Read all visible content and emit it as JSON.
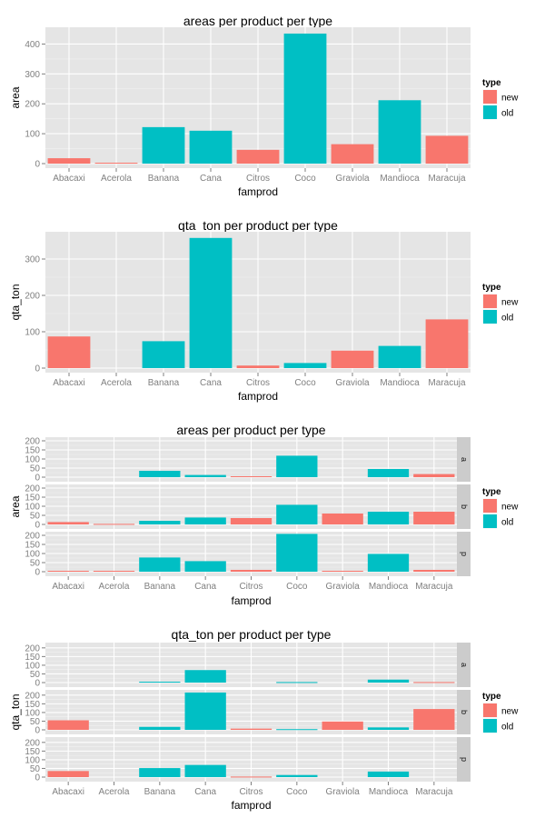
{
  "colors": {
    "new": "#F8766D",
    "old": "#00BFC4",
    "panel_bg": "#E5E5E5",
    "grid": "#FFFFFF",
    "strip_bg": "#CCCCCC",
    "tick_text": "#7F7F7F"
  },
  "legend": {
    "title": "type",
    "labels": [
      "new",
      "old"
    ]
  },
  "chart_data": [
    {
      "type": "bar",
      "title": "areas per product per type",
      "xlabel": "famprod",
      "ylabel": "area",
      "categories": [
        "Abacaxi",
        "Acerola",
        "Banana",
        "Cana",
        "Citros",
        "Coco",
        "Graviola",
        "Mandioca",
        "Maracuja"
      ],
      "fill": [
        "new",
        "new",
        "old",
        "old",
        "new",
        "old",
        "new",
        "old",
        "new"
      ],
      "values": [
        18,
        3,
        122,
        110,
        46,
        435,
        65,
        212,
        93
      ],
      "ylim": [
        0,
        450
      ],
      "yticks": [
        0,
        100,
        200,
        300,
        400
      ],
      "legend_position": "right",
      "grid": true
    },
    {
      "type": "bar",
      "title": "qta_ton per product per type",
      "xlabel": "famprod",
      "ylabel": "qta_ton",
      "categories": [
        "Abacaxi",
        "Acerola",
        "Banana",
        "Cana",
        "Citros",
        "Coco",
        "Graviola",
        "Mandioca",
        "Maracuja"
      ],
      "fill": [
        "new",
        "new",
        "old",
        "old",
        "new",
        "old",
        "new",
        "old",
        "new"
      ],
      "values": [
        87,
        0,
        74,
        358,
        7,
        14,
        48,
        61,
        134
      ],
      "ylim": [
        0,
        370
      ],
      "yticks": [
        0,
        100,
        200,
        300
      ],
      "legend_position": "right",
      "grid": true
    },
    {
      "type": "bar",
      "title": "areas per product per type",
      "xlabel": "famprod",
      "ylabel": "area",
      "categories": [
        "Abacaxi",
        "Acerola",
        "Banana",
        "Cana",
        "Citros",
        "Coco",
        "Graviola",
        "Mandioca",
        "Maracuja"
      ],
      "fill": [
        "new",
        "new",
        "old",
        "old",
        "new",
        "old",
        "new",
        "old",
        "new"
      ],
      "ylim": [
        0,
        210
      ],
      "yticks": [
        0,
        50,
        100,
        150,
        200
      ],
      "legend_position": "right",
      "grid": true,
      "facets": [
        {
          "label": "a",
          "values": [
            0,
            0,
            35,
            12,
            5,
            118,
            0,
            45,
            17
          ]
        },
        {
          "label": "b",
          "values": [
            13,
            3,
            20,
            38,
            35,
            108,
            60,
            70,
            70
          ]
        },
        {
          "label": "p",
          "values": [
            5,
            5,
            78,
            58,
            10,
            208,
            5,
            98,
            10
          ]
        }
      ]
    },
    {
      "type": "bar",
      "title": "qta_ton per product per type",
      "xlabel": "famprod",
      "ylabel": "qta_ton",
      "categories": [
        "Abacaxi",
        "Acerola",
        "Banana",
        "Cana",
        "Citros",
        "Coco",
        "Graviola",
        "Mandioca",
        "Maracuja"
      ],
      "fill": [
        "new",
        "new",
        "old",
        "old",
        "new",
        "old",
        "new",
        "old",
        "new"
      ],
      "ylim": [
        0,
        220
      ],
      "yticks": [
        0,
        50,
        100,
        150,
        200
      ],
      "legend_position": "right",
      "grid": true,
      "facets": [
        {
          "label": "a",
          "values": [
            0,
            0,
            5,
            72,
            0,
            3,
            0,
            17,
            3
          ]
        },
        {
          "label": "b",
          "values": [
            55,
            0,
            17,
            215,
            7,
            4,
            48,
            14,
            120
          ]
        },
        {
          "label": "p",
          "values": [
            35,
            0,
            52,
            70,
            3,
            12,
            0,
            32,
            0
          ]
        }
      ]
    }
  ]
}
